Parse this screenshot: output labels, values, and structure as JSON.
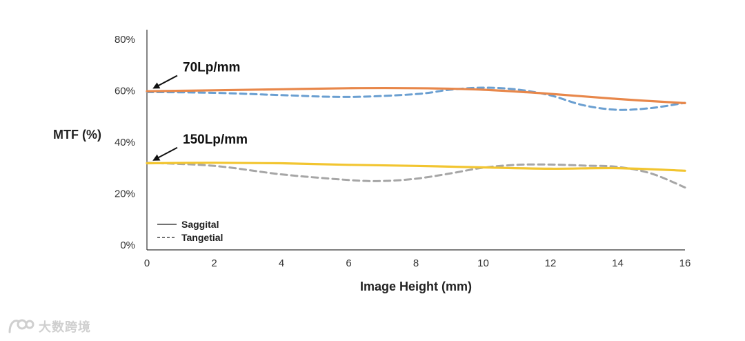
{
  "chart_data": {
    "type": "line",
    "title": "",
    "xlabel": "Image Height (mm)",
    "ylabel": "MTF (%)",
    "xlim": [
      0,
      16
    ],
    "ylim": [
      0,
      80
    ],
    "x_ticks": [
      0,
      2,
      4,
      6,
      8,
      10,
      12,
      14,
      16
    ],
    "y_ticks": [
      0,
      20,
      40,
      60,
      80
    ],
    "y_tick_suffix": "%",
    "grid": false,
    "legend": {
      "placement": "bottom-left",
      "entries": [
        {
          "label": "Saggital",
          "style": "solid"
        },
        {
          "label": "Tangetial",
          "style": "dashed"
        }
      ]
    },
    "annotations": [
      {
        "text": "70Lp/mm",
        "points_to": [
          0,
          60
        ]
      },
      {
        "text": "150Lp/mm",
        "points_to": [
          0,
          32
        ]
      }
    ],
    "series": [
      {
        "group": "70Lp/mm",
        "style": "solid",
        "color": "#E8874A",
        "points": [
          [
            0,
            59.8
          ],
          [
            2,
            60.2
          ],
          [
            4,
            60.6
          ],
          [
            6,
            61
          ],
          [
            8,
            61
          ],
          [
            10,
            60.4
          ],
          [
            12,
            58.8
          ],
          [
            14,
            56.8
          ],
          [
            16,
            55.2
          ]
        ]
      },
      {
        "group": "70Lp/mm",
        "style": "dashed",
        "color": "#6A9FD1",
        "points": [
          [
            0,
            59.5
          ],
          [
            2,
            59.2
          ],
          [
            4,
            58.3
          ],
          [
            6,
            57.6
          ],
          [
            8,
            58.7
          ],
          [
            9,
            60.4
          ],
          [
            10,
            61.2
          ],
          [
            11,
            60.5
          ],
          [
            12,
            58.2
          ],
          [
            13,
            54.3
          ],
          [
            14,
            52.6
          ],
          [
            15,
            53.3
          ],
          [
            16,
            55.3
          ]
        ]
      },
      {
        "group": "150Lp/mm",
        "style": "solid",
        "color": "#F2C530",
        "points": [
          [
            0,
            31.8
          ],
          [
            2,
            32
          ],
          [
            4,
            31.8
          ],
          [
            6,
            31.2
          ],
          [
            8,
            30.8
          ],
          [
            10,
            30.2
          ],
          [
            12,
            29.7
          ],
          [
            14,
            29.9
          ],
          [
            16,
            28.9
          ]
        ]
      },
      {
        "group": "150Lp/mm",
        "style": "dashed",
        "color": "#A6A6A6",
        "points": [
          [
            0,
            32
          ],
          [
            2,
            30.8
          ],
          [
            4,
            27.5
          ],
          [
            6,
            25.3
          ],
          [
            7,
            24.9
          ],
          [
            8,
            25.8
          ],
          [
            9,
            27.8
          ],
          [
            10,
            30.1
          ],
          [
            11,
            31.2
          ],
          [
            12,
            31.3
          ],
          [
            13,
            30.9
          ],
          [
            14,
            30.4
          ],
          [
            15,
            27.8
          ],
          [
            16,
            22.4
          ]
        ]
      }
    ]
  },
  "watermark": {
    "text": "大数跨境"
  }
}
